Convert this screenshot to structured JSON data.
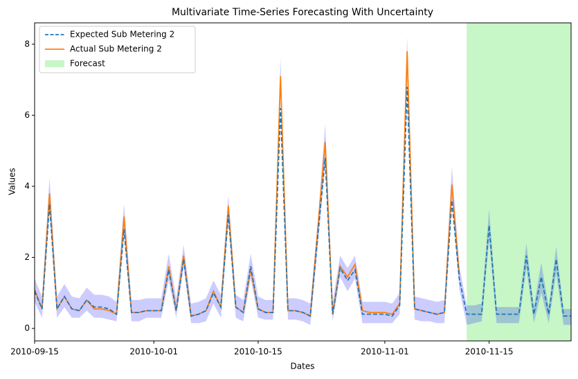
{
  "chart_data": {
    "type": "line",
    "title": "Multivariate Time-Series Forecasting With Uncertainty",
    "xlabel": "Dates",
    "ylabel": "Values",
    "x": [
      "2010-09-15",
      "2010-09-16",
      "2010-09-17",
      "2010-09-18",
      "2010-09-19",
      "2010-09-20",
      "2010-09-21",
      "2010-09-22",
      "2010-09-23",
      "2010-09-24",
      "2010-09-25",
      "2010-09-26",
      "2010-09-27",
      "2010-09-28",
      "2010-09-29",
      "2010-09-30",
      "2010-10-01",
      "2010-10-02",
      "2010-10-03",
      "2010-10-04",
      "2010-10-05",
      "2010-10-06",
      "2010-10-07",
      "2010-10-08",
      "2010-10-09",
      "2010-10-10",
      "2010-10-11",
      "2010-10-12",
      "2010-10-13",
      "2010-10-14",
      "2010-10-15",
      "2010-10-16",
      "2010-10-17",
      "2010-10-18",
      "2010-10-19",
      "2010-10-20",
      "2010-10-21",
      "2010-10-22",
      "2010-10-23",
      "2010-10-24",
      "2010-10-25",
      "2010-10-26",
      "2010-10-27",
      "2010-10-28",
      "2010-10-29",
      "2010-10-30",
      "2010-10-31",
      "2010-11-01",
      "2010-11-02",
      "2010-11-03",
      "2010-11-04",
      "2010-11-05",
      "2010-11-06",
      "2010-11-07",
      "2010-11-08",
      "2010-11-09",
      "2010-11-10",
      "2010-11-11",
      "2010-11-12",
      "2010-11-13",
      "2010-11-14",
      "2010-11-15",
      "2010-11-16",
      "2010-11-17",
      "2010-11-18",
      "2010-11-19",
      "2010-11-20",
      "2010-11-21",
      "2010-11-22",
      "2010-11-23",
      "2010-11-24",
      "2010-11-25",
      "2010-11-26"
    ],
    "series": [
      {
        "name": "Expected Sub Metering 2",
        "color": "#1f77b4",
        "dashed": true,
        "values": [
          1.05,
          0.55,
          3.5,
          0.55,
          0.9,
          0.55,
          0.5,
          0.8,
          0.6,
          0.6,
          0.55,
          0.4,
          2.8,
          0.45,
          0.45,
          0.5,
          0.5,
          0.5,
          1.65,
          0.5,
          1.95,
          0.35,
          0.4,
          0.5,
          1.0,
          0.6,
          3.2,
          0.6,
          0.45,
          1.75,
          0.55,
          0.45,
          0.45,
          6.2,
          0.5,
          0.5,
          0.45,
          0.35,
          2.6,
          4.8,
          0.4,
          1.7,
          1.35,
          1.65,
          0.4,
          0.4,
          0.4,
          0.4,
          0.35,
          0.65,
          6.8,
          0.55,
          0.5,
          0.45,
          0.4,
          0.45,
          3.6,
          1.4,
          0.4,
          0.4,
          0.4,
          2.9,
          0.4,
          0.4,
          0.4,
          0.4,
          2.05,
          0.4,
          1.45,
          0.4,
          1.95,
          0.35,
          0.35
        ]
      },
      {
        "name": "Actual Sub Metering 2",
        "color": "#ff7f0e",
        "dashed": false,
        "values": [
          1.1,
          0.55,
          3.8,
          0.55,
          0.9,
          0.55,
          0.5,
          0.8,
          0.55,
          0.55,
          0.5,
          0.4,
          3.15,
          0.45,
          0.45,
          0.5,
          0.5,
          0.5,
          1.75,
          0.5,
          2.05,
          0.35,
          0.4,
          0.5,
          1.05,
          0.6,
          3.45,
          0.6,
          0.45,
          1.65,
          0.55,
          0.45,
          0.45,
          7.1,
          0.5,
          0.5,
          0.45,
          0.35,
          2.8,
          5.25,
          0.4,
          1.75,
          1.45,
          1.8,
          0.5,
          0.45,
          0.45,
          0.45,
          0.4,
          0.7,
          7.8,
          0.55,
          0.5,
          0.45,
          0.4,
          0.45,
          4.05,
          1.5,
          null,
          null,
          null,
          null,
          null,
          null,
          null,
          null,
          null,
          null,
          null,
          null,
          null,
          null,
          null
        ]
      }
    ],
    "band": {
      "color": "#0000ff",
      "upper": [
        1.4,
        0.9,
        4.25,
        0.9,
        1.25,
        0.9,
        0.85,
        1.15,
        0.95,
        0.95,
        0.9,
        0.75,
        3.5,
        0.8,
        0.8,
        0.85,
        0.85,
        0.85,
        2.1,
        0.85,
        2.35,
        0.7,
        0.75,
        0.85,
        1.35,
        0.95,
        3.75,
        0.95,
        0.8,
        2.1,
        0.9,
        0.8,
        0.8,
        7.6,
        0.85,
        0.85,
        0.8,
        0.7,
        3.0,
        5.75,
        0.75,
        2.05,
        1.7,
        2.05,
        0.75,
        0.75,
        0.75,
        0.75,
        0.7,
        1.0,
        8.2,
        0.9,
        0.85,
        0.8,
        0.75,
        0.8,
        4.55,
        1.75,
        0.65,
        0.65,
        0.7,
        3.35,
        0.6,
        0.6,
        0.6,
        0.6,
        2.4,
        0.6,
        1.85,
        0.6,
        2.3,
        0.55,
        0.55
      ],
      "lower": [
        0.75,
        0.3,
        3.3,
        0.3,
        0.6,
        0.3,
        0.3,
        0.5,
        0.3,
        0.3,
        0.25,
        0.2,
        2.6,
        0.2,
        0.2,
        0.3,
        0.3,
        0.3,
        1.35,
        0.3,
        1.7,
        0.15,
        0.15,
        0.2,
        0.7,
        0.3,
        3.0,
        0.3,
        0.2,
        1.4,
        0.3,
        0.25,
        0.25,
        6.6,
        0.25,
        0.25,
        0.2,
        0.1,
        2.3,
        4.6,
        0.2,
        1.45,
        1.05,
        1.4,
        0.15,
        0.15,
        0.15,
        0.15,
        0.15,
        0.4,
        7.0,
        0.25,
        0.2,
        0.2,
        0.15,
        0.15,
        3.6,
        1.1,
        0.1,
        0.15,
        0.2,
        2.5,
        0.15,
        0.15,
        0.15,
        0.15,
        1.7,
        0.15,
        1.0,
        0.15,
        1.55,
        0.1,
        0.1
      ]
    },
    "forecast": {
      "label": "Forecast",
      "start": "2010-11-12",
      "color": "#90ee90"
    },
    "xlim": [
      "2010-09-15",
      "2010-11-26"
    ],
    "xticks": [
      "2010-09-15",
      "2010-10-01",
      "2010-10-15",
      "2010-11-01",
      "2010-11-15"
    ],
    "ylim": [
      -0.35,
      8.6
    ],
    "yticks": [
      0,
      2,
      4,
      6,
      8
    ],
    "legend": "upper left"
  }
}
